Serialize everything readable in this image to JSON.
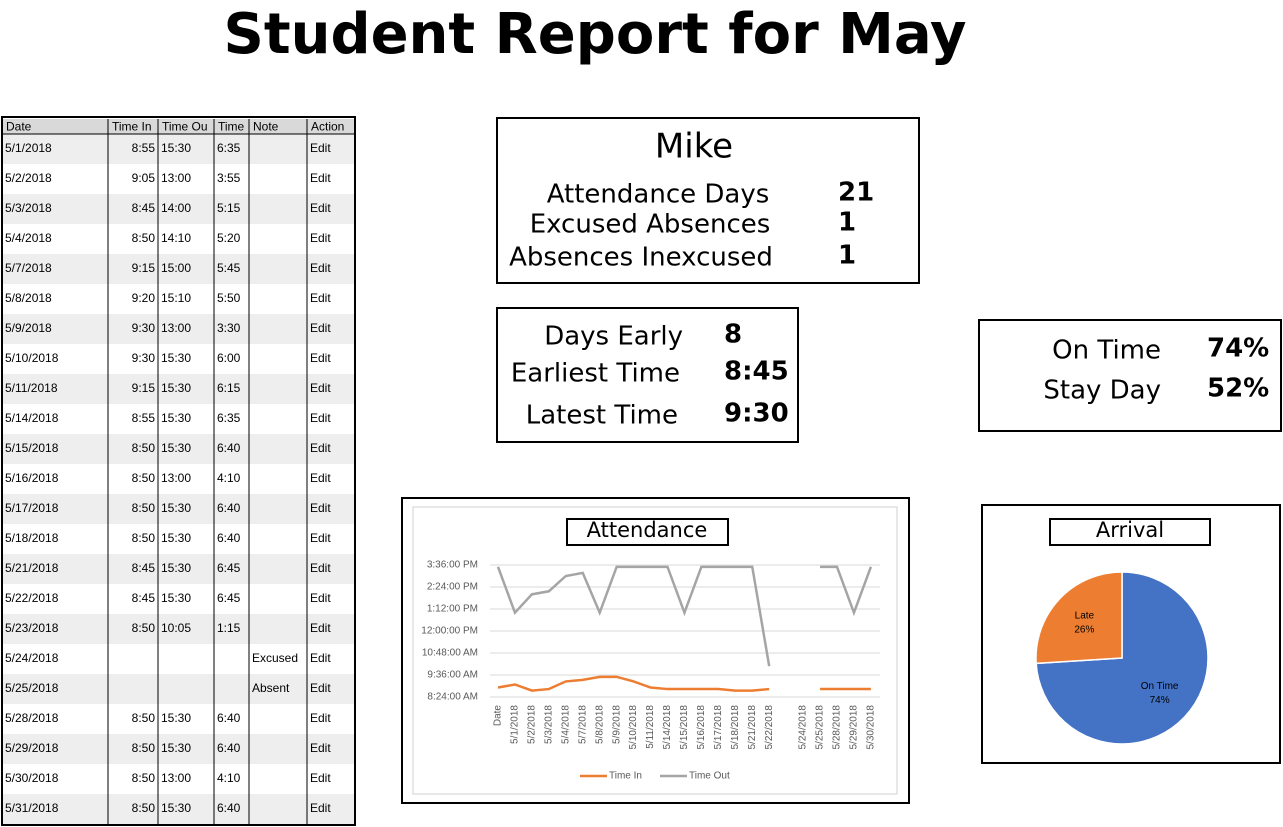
{
  "title": "Student Report for May",
  "table": {
    "header": [
      "Date",
      "Time In",
      "Time Ou",
      "Time",
      "Note",
      "Action"
    ],
    "rows": [
      [
        "5/1/2018",
        "8:55",
        "15:30",
        "6:35",
        null,
        "Edit"
      ],
      [
        "5/2/2018",
        "9:05",
        "13:00",
        "3:55",
        null,
        "Edit"
      ],
      [
        "5/3/2018",
        "8:45",
        "14:00",
        "5:15",
        null,
        "Edit"
      ],
      [
        "5/4/2018",
        "8:50",
        "14:10",
        "5:20",
        null,
        "Edit"
      ],
      [
        "5/7/2018",
        "9:15",
        "15:00",
        "5:45",
        null,
        "Edit"
      ],
      [
        "5/8/2018",
        "9:20",
        "15:10",
        "5:50",
        null,
        "Edit"
      ],
      [
        "5/9/2018",
        "9:30",
        "13:00",
        "3:30",
        null,
        "Edit"
      ],
      [
        "5/10/2018",
        "9:30",
        "15:30",
        "6:00",
        null,
        "Edit"
      ],
      [
        "5/11/2018",
        "9:15",
        "15:30",
        "6:15",
        null,
        "Edit"
      ],
      [
        "5/14/2018",
        "8:55",
        "15:30",
        "6:35",
        null,
        "Edit"
      ],
      [
        "5/15/2018",
        "8:50",
        "15:30",
        "6:40",
        null,
        "Edit"
      ],
      [
        "5/16/2018",
        "8:50",
        "13:00",
        "4:10",
        null,
        "Edit"
      ],
      [
        "5/17/2018",
        "8:50",
        "15:30",
        "6:40",
        null,
        "Edit"
      ],
      [
        "5/18/2018",
        "8:50",
        "15:30",
        "6:40",
        null,
        "Edit"
      ],
      [
        "5/21/2018",
        "8:45",
        "15:30",
        "6:45",
        null,
        "Edit"
      ],
      [
        "5/22/2018",
        "8:45",
        "15:30",
        "6:45",
        null,
        "Edit"
      ],
      [
        "5/23/2018",
        "8:50",
        "10:05",
        "1:15",
        null,
        "Edit"
      ],
      [
        "5/24/2018",
        null,
        null,
        null,
        "Excused",
        "Edit"
      ],
      [
        "5/25/2018",
        null,
        null,
        null,
        "Absent",
        "Edit"
      ],
      [
        "5/28/2018",
        "8:50",
        "15:30",
        "6:40",
        null,
        "Edit"
      ],
      [
        "5/29/2018",
        "8:50",
        "15:30",
        "6:40",
        null,
        "Edit"
      ],
      [
        "5/30/2018",
        "8:50",
        "13:00",
        "4:10",
        null,
        "Edit"
      ],
      [
        "5/31/2018",
        "8:50",
        "15:30",
        "6:40",
        null,
        "Edit"
      ]
    ]
  },
  "summary": {
    "name": "Mike",
    "rows": [
      {
        "label": "Attendance Days",
        "value": "21"
      },
      {
        "label": "Excused Absences",
        "value": "1"
      },
      {
        "label": "Absences Inexcused",
        "value": "1"
      }
    ]
  },
  "times": {
    "rows": [
      {
        "label": "Days Early",
        "value": "8"
      },
      {
        "label": "Earliest Time",
        "value": "8:45"
      },
      {
        "label": "Latest Time",
        "value": "9:30"
      }
    ]
  },
  "rates": {
    "rows": [
      {
        "label": "On Time",
        "value": "74%"
      },
      {
        "label": "Stay Day",
        "value": "52%"
      }
    ]
  },
  "chart_data": [
    {
      "type": "line",
      "title": "Attendance",
      "categories": [
        "Date",
        "5/1/2018",
        "5/2/2018",
        "5/3/2018",
        "5/4/2018",
        "5/7/2018",
        "5/8/2018",
        "5/9/2018",
        "5/10/2018",
        "5/11/2018",
        "5/14/2018",
        "5/15/2018",
        "5/16/2018",
        "5/17/2018",
        "5/18/2018",
        "5/21/2018",
        "5/22/2018",
        null,
        "5/24/2018",
        "5/25/2018",
        "5/28/2018",
        "5/29/2018",
        "5/30/2018"
      ],
      "series": [
        {
          "name": "Time In",
          "color": "#ed7d31",
          "values": [
            8.917,
            9.083,
            8.75,
            8.833,
            9.25,
            9.333,
            9.5,
            9.5,
            9.25,
            8.917,
            8.833,
            8.833,
            8.833,
            8.833,
            8.75,
            8.75,
            8.833,
            null,
            null,
            8.833,
            8.833,
            8.833,
            8.833
          ]
        },
        {
          "name": "Time Out",
          "color": "#a5a5a5",
          "values": [
            15.5,
            13,
            14,
            14.167,
            15,
            15.167,
            13,
            15.5,
            15.5,
            15.5,
            15.5,
            13,
            15.5,
            15.5,
            15.5,
            15.5,
            10.083,
            null,
            null,
            15.5,
            15.5,
            13,
            15.5
          ]
        }
      ],
      "ylim": [
        8.4,
        15.6
      ],
      "yticks": [
        {
          "value": 8.4,
          "label": "8:24:00 AM"
        },
        {
          "value": 9.6,
          "label": "9:36:00 AM"
        },
        {
          "value": 10.8,
          "label": "10:48:00 AM"
        },
        {
          "value": 12,
          "label": "12:00:00 PM"
        },
        {
          "value": 13.2,
          "label": "1:12:00 PM"
        },
        {
          "value": 14.4,
          "label": "2:24:00 PM"
        },
        {
          "value": 15.6,
          "label": "3:36:00 PM"
        }
      ],
      "grid": true,
      "legend": "bottom"
    },
    {
      "type": "pie",
      "title": "Arrival",
      "categories": [
        "On Time",
        "Late"
      ],
      "values": [
        74,
        26
      ],
      "value_labels": [
        "74%",
        "26%"
      ],
      "colors": [
        "#4472c4",
        "#ed7d31"
      ]
    }
  ]
}
